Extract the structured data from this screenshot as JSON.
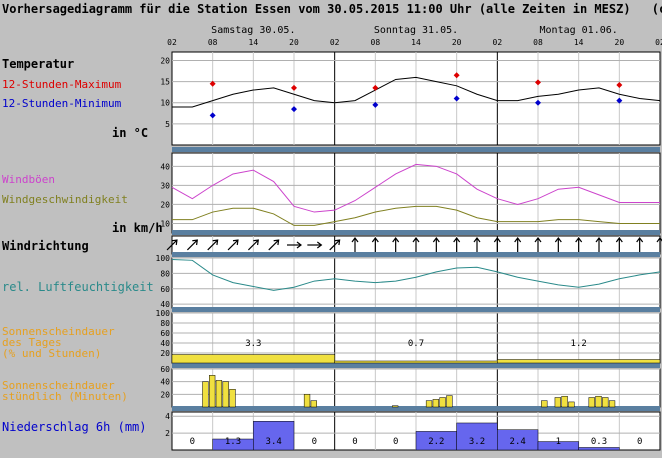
{
  "title": "Vorhersagediagramm für die Station Essen vom 30.05.2015 11:00 Uhr (alle Zeiten in MESZ)",
  "copyright": "(c) M",
  "days": [
    "Samstag 30.05.",
    "Sonntag 31.05.",
    "Montag 01.06."
  ],
  "hour_ticks": [
    "02",
    "08",
    "14",
    "20",
    "02",
    "08",
    "14",
    "20",
    "02",
    "08",
    "14",
    "20",
    "02"
  ],
  "colors": {
    "bg": "#c0c0c0",
    "plot": "#ffffff",
    "sep": "#5a7fa0",
    "temp": "#000000",
    "max": "#dd0000",
    "min": "#0000cc",
    "gust": "#cc44cc",
    "wind": "#808020",
    "rh": "#2a8a8a",
    "sun": "#f0e040",
    "precip": "#6666ee",
    "orange": "#e6a020"
  },
  "labels": {
    "temperature": "Temperatur",
    "tmax": "12-Stunden-Maximum",
    "tmin": "12-Stunden-Minimum",
    "temp_unit": "in °C",
    "gusts": "Windböen",
    "wind_speed": "Windgeschwindigkeit",
    "wind_unit": "in km/h",
    "wind_dir": "Windrichtung",
    "humidity": "rel. Luftfeuchtigkeit",
    "sun_daily_1": "Sonnenscheindauer",
    "sun_daily_2": "des Tages",
    "sun_daily_3": "(% und Stunden)",
    "sun_hourly_1": "Sonnenscheindauer",
    "sun_hourly_2": "stündlich (Minuten)",
    "precip": "Niederschlag 6h (mm)"
  },
  "chart_data": [
    {
      "type": "line",
      "name": "Temperatur",
      "ylim": [
        0,
        22
      ],
      "yticks": [
        5,
        10,
        15,
        20
      ],
      "x": [
        0,
        3,
        6,
        9,
        12,
        15,
        18,
        21,
        24,
        27,
        30,
        33,
        36,
        39,
        42,
        45,
        48,
        51,
        54,
        57,
        60,
        63,
        66,
        69,
        72
      ],
      "values": [
        9,
        9,
        10.5,
        12,
        13,
        13.5,
        12,
        10.5,
        10,
        10.5,
        13,
        15.5,
        16,
        15,
        14,
        12,
        10.5,
        10.5,
        11.5,
        12,
        13,
        13.5,
        12,
        11,
        10.5
      ],
      "max_points": [
        {
          "x": 6,
          "y": 14.5
        },
        {
          "x": 18,
          "y": 13.5
        },
        {
          "x": 30,
          "y": 13.5
        },
        {
          "x": 42,
          "y": 16.5
        },
        {
          "x": 54,
          "y": 14.8
        },
        {
          "x": 66,
          "y": 14.2
        }
      ],
      "min_points": [
        {
          "x": 6,
          "y": 7
        },
        {
          "x": 18,
          "y": 8.5
        },
        {
          "x": 30,
          "y": 9.5
        },
        {
          "x": 42,
          "y": 11
        },
        {
          "x": 54,
          "y": 10
        },
        {
          "x": 66,
          "y": 10.5
        }
      ]
    },
    {
      "type": "line",
      "name": "Wind",
      "ylim": [
        5,
        47
      ],
      "yticks": [
        10,
        20,
        30,
        40
      ],
      "x": [
        0,
        3,
        6,
        9,
        12,
        15,
        18,
        21,
        24,
        27,
        30,
        33,
        36,
        39,
        42,
        45,
        48,
        51,
        54,
        57,
        60,
        63,
        66,
        69,
        72
      ],
      "gusts": [
        29,
        23,
        30,
        36,
        38,
        32,
        19,
        16,
        17,
        22,
        29,
        36,
        41,
        40,
        36,
        28,
        23,
        20,
        23,
        28,
        29,
        25,
        21,
        21,
        21
      ],
      "wind": [
        12,
        12,
        16,
        18,
        18,
        15,
        9,
        9,
        11,
        13,
        16,
        18,
        19,
        19,
        17,
        13,
        11,
        11,
        11,
        12,
        12,
        11,
        10,
        10,
        10
      ]
    },
    {
      "type": "arrows",
      "name": "Windrichtung",
      "directions": [
        "SW",
        "SW",
        "SW",
        "SW",
        "SW",
        "SW",
        "W",
        "W",
        "SW",
        "S",
        "S",
        "S",
        "S",
        "S",
        "S",
        "S",
        "S",
        "S",
        "S",
        "S",
        "S",
        "S",
        "S",
        "S",
        "S"
      ]
    },
    {
      "type": "line",
      "name": "rel. Luftfeuchtigkeit",
      "ylim": [
        35,
        100
      ],
      "yticks": [
        40,
        60,
        80,
        100
      ],
      "x": [
        0,
        3,
        6,
        9,
        12,
        15,
        18,
        21,
        24,
        27,
        30,
        33,
        36,
        39,
        42,
        45,
        48,
        51,
        54,
        57,
        60,
        63,
        66,
        69,
        72
      ],
      "values": [
        98,
        97,
        78,
        68,
        63,
        58,
        62,
        70,
        73,
        70,
        68,
        70,
        75,
        82,
        87,
        88,
        82,
        75,
        70,
        65,
        62,
        66,
        73,
        78,
        82
      ]
    },
    {
      "type": "bar",
      "name": "Sonnenscheindauer des Tages",
      "ylim": [
        0,
        100
      ],
      "yticks": [
        20,
        40,
        60,
        80,
        100
      ],
      "days": [
        {
          "percent": 17,
          "hours": "3.3"
        },
        {
          "percent": 4,
          "hours": "0.7"
        },
        {
          "percent": 7,
          "hours": "1.2"
        }
      ]
    },
    {
      "type": "bar",
      "name": "Sonnenscheindauer stündlich",
      "ylim": [
        0,
        60
      ],
      "yticks": [
        20,
        40,
        60
      ],
      "hours": [
        5,
        6,
        7,
        8,
        9,
        20,
        21,
        33,
        38,
        39,
        40,
        41,
        55,
        57,
        58,
        59,
        62,
        63,
        64,
        65
      ],
      "values": [
        40,
        50,
        42,
        40,
        28,
        20,
        10,
        2,
        10,
        12,
        15,
        18,
        10,
        15,
        17,
        8,
        15,
        17,
        15,
        10
      ]
    },
    {
      "type": "bar",
      "name": "Niederschlag 6h",
      "ylim": [
        0,
        4.5
      ],
      "yticks": [
        2,
        4
      ],
      "values": [
        0,
        1.3,
        3.4,
        0,
        0,
        0,
        2.2,
        3.2,
        2.4,
        1,
        0.3,
        0
      ],
      "labels": [
        "0",
        "1.3",
        "3.4",
        "0",
        "0",
        "0",
        "2.2",
        "3.2",
        "2.4",
        "1",
        "0.3",
        "0"
      ]
    }
  ]
}
